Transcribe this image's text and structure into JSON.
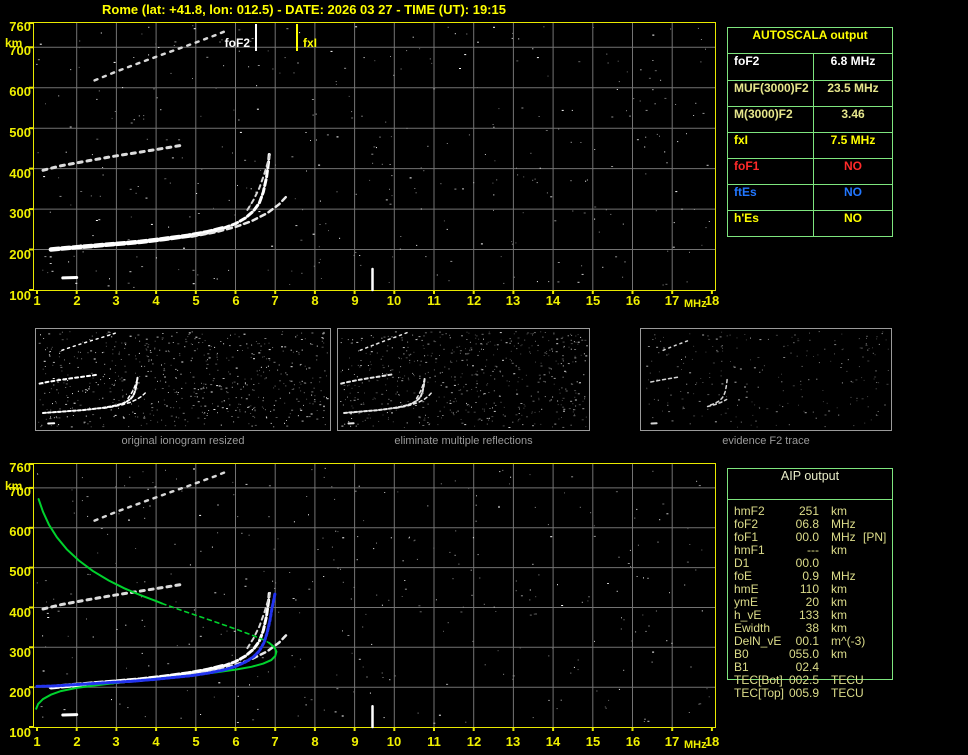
{
  "title": "Rome (lat: +41.8, lon: 012.5) - DATE: 2026 03 27 - TIME (UT): 19:15",
  "axes": {
    "y_unit": "km",
    "x_unit": "MHz",
    "y_ticks": [
      760,
      700,
      600,
      500,
      400,
      300,
      200,
      100
    ],
    "x_ticks": [
      1,
      2,
      3,
      4,
      5,
      6,
      7,
      8,
      9,
      10,
      11,
      12,
      13,
      14,
      15,
      16,
      17,
      18
    ]
  },
  "top_plot": {
    "foF2_label": "foF2",
    "fxI_label": "fxI"
  },
  "panels": [
    {
      "caption": "original ionogram resized"
    },
    {
      "caption": "eliminate multiple reflections"
    },
    {
      "caption": "evidence F2 trace"
    }
  ],
  "autoscala": {
    "title": "AUTOSCALA output",
    "rows": [
      {
        "param": "foF2",
        "value": "6.8 MHz",
        "color": "#ffffff"
      },
      {
        "param": "MUF(3000)F2",
        "value": "23.5 MHz",
        "color": "#e6e68c"
      },
      {
        "param": "M(3000)F2",
        "value": "3.46",
        "color": "#e6e68c"
      },
      {
        "param": "fxI",
        "value": "7.5 MHz",
        "color": "#ffff00"
      },
      {
        "param": "foF1",
        "value": "NO",
        "color": "#ff2a2a"
      },
      {
        "param": "ftEs",
        "value": "NO",
        "color": "#2277ff"
      },
      {
        "param": "h'Es",
        "value": "NO",
        "color": "#ffff00"
      }
    ]
  },
  "aip": {
    "title": "AIP output",
    "rows": [
      {
        "name": "hmF2",
        "value": "251",
        "unit": "km",
        "extra": ""
      },
      {
        "name": "foF2",
        "value": "06.8",
        "unit": "MHz",
        "extra": ""
      },
      {
        "name": "foF1",
        "value": "00.0",
        "unit": "MHz",
        "extra": "[PN]"
      },
      {
        "name": "hmF1",
        "value": "---",
        "unit": "km",
        "extra": ""
      },
      {
        "name": "D1",
        "value": "00.0",
        "unit": "",
        "extra": ""
      },
      {
        "name": "foE",
        "value": "0.9",
        "unit": "MHz",
        "extra": ""
      },
      {
        "name": "hmE",
        "value": "110",
        "unit": "km",
        "extra": ""
      },
      {
        "name": "ymE",
        "value": "20",
        "unit": "km",
        "extra": ""
      },
      {
        "name": "h_vE",
        "value": "133",
        "unit": "km",
        "extra": ""
      },
      {
        "name": "Ewidth",
        "value": "38",
        "unit": "km",
        "extra": ""
      },
      {
        "name": "DelN_vE",
        "value": "00.1",
        "unit": "m^(-3)",
        "extra": ""
      },
      {
        "name": "B0",
        "value": "055.0",
        "unit": "km",
        "extra": ""
      },
      {
        "name": "B1",
        "value": "02.4",
        "unit": "",
        "extra": ""
      },
      {
        "name": "TEC[Bot]",
        "value": "002.5",
        "unit": "TECU",
        "extra": ""
      },
      {
        "name": "TEC[Top]",
        "value": "005.9",
        "unit": "TECU",
        "extra": ""
      }
    ]
  },
  "colors": {
    "accent_yellow": "#ffff00",
    "axis_yellow": "#efef00",
    "table_border_green": "#7ee57e",
    "profile_green": "#00d22d",
    "trace_blue": "#2233ee",
    "grid_gray": "#737373",
    "caption_gray": "#9a9a9a",
    "aip_text": "#dcdc8a"
  },
  "chart_data": [
    {
      "type": "scatter",
      "title": "Autoscaled ionogram",
      "xlabel": "MHz",
      "ylabel": "km",
      "xlim": [
        1,
        18
      ],
      "ylim": [
        100,
        760
      ],
      "grid": true,
      "markers": {
        "foF2_MHz": 6.8,
        "fxI_MHz": 7.5
      },
      "series": [
        {
          "name": "F2 trace o-mode",
          "points": [
            [
              1.35,
              200
            ],
            [
              1.8,
              204
            ],
            [
              2.4,
              209
            ],
            [
              3.0,
              214
            ],
            [
              3.6,
              219
            ],
            [
              4.2,
              226
            ],
            [
              4.8,
              234
            ],
            [
              5.3,
              243
            ],
            [
              5.7,
              253
            ],
            [
              6.0,
              264
            ],
            [
              6.25,
              278
            ],
            [
              6.45,
              295
            ],
            [
              6.6,
              315
            ],
            [
              6.7,
              342
            ],
            [
              6.78,
              378
            ],
            [
              6.83,
              415
            ],
            [
              6.85,
              435
            ]
          ]
        },
        {
          "name": "F2 trace x-mode",
          "points": [
            [
              4.9,
              232
            ],
            [
              5.5,
              243
            ],
            [
              6.0,
              256
            ],
            [
              6.4,
              270
            ],
            [
              6.8,
              290
            ],
            [
              7.1,
              312
            ],
            [
              7.3,
              333
            ]
          ]
        },
        {
          "name": "second-hop trace",
          "points": [
            [
              1.15,
              396
            ],
            [
              1.6,
              407
            ],
            [
              2.2,
              418
            ],
            [
              2.9,
              430
            ],
            [
              3.6,
              441
            ],
            [
              4.3,
              452
            ],
            [
              4.6,
              457
            ]
          ]
        },
        {
          "name": "second-hop upper trace",
          "points": [
            [
              2.45,
              618
            ],
            [
              3.0,
              640
            ],
            [
              3.6,
              662
            ],
            [
              4.3,
              687
            ],
            [
              4.9,
              708
            ],
            [
              5.5,
              730
            ],
            [
              5.75,
              740
            ]
          ]
        },
        {
          "name": "second-hop cusp",
          "points": [
            [
              6.3,
              298
            ],
            [
              6.45,
              322
            ],
            [
              6.6,
              352
            ],
            [
              6.72,
              385
            ],
            [
              6.82,
              418
            ],
            [
              6.88,
              440
            ]
          ]
        },
        {
          "name": "interference line",
          "points": [
            [
              9.45,
              100
            ],
            [
              9.45,
              152
            ]
          ]
        },
        {
          "name": "E-region blob",
          "points": [
            [
              1.65,
              130
            ],
            [
              2.0,
              131
            ]
          ]
        }
      ]
    },
    {
      "type": "line",
      "title": "Ionogram with AIP electron density profile and restored trace",
      "xlabel": "MHz",
      "ylabel": "km",
      "xlim": [
        1,
        18
      ],
      "ylim": [
        100,
        760
      ],
      "grid": true,
      "series": [
        {
          "name": "profile upper (solid)",
          "points": [
            [
              1.04,
              672
            ],
            [
              1.15,
              640
            ],
            [
              1.3,
              608
            ],
            [
              1.5,
              576
            ],
            [
              1.75,
              546
            ],
            [
              2.05,
              518
            ],
            [
              2.4,
              492
            ],
            [
              2.8,
              468
            ],
            [
              3.2,
              448
            ],
            [
              3.6,
              431
            ],
            [
              4.0,
              416
            ],
            [
              4.15,
              410
            ]
          ]
        },
        {
          "name": "profile middle (dashed)",
          "points": [
            [
              4.15,
              410
            ],
            [
              4.6,
              394
            ],
            [
              5.1,
              377
            ],
            [
              5.6,
              360
            ],
            [
              6.0,
              346
            ],
            [
              6.4,
              331
            ],
            [
              6.7,
              319
            ],
            [
              6.85,
              311
            ]
          ]
        },
        {
          "name": "profile nose and valley",
          "points": [
            [
              6.85,
              311
            ],
            [
              6.98,
              300
            ],
            [
              7.03,
              289
            ],
            [
              7.0,
              278
            ],
            [
              6.9,
              268
            ],
            [
              6.7,
              259
            ],
            [
              6.4,
              251
            ],
            [
              6.0,
              244
            ],
            [
              5.5,
              237
            ],
            [
              4.9,
              230
            ],
            [
              4.3,
              224
            ],
            [
              3.7,
              218
            ],
            [
              3.1,
              212
            ],
            [
              2.5,
              205
            ],
            [
              2.0,
              198
            ],
            [
              1.6,
              190
            ],
            [
              1.35,
              181
            ],
            [
              1.15,
              170
            ],
            [
              1.03,
              158
            ],
            [
              0.98,
              146
            ]
          ]
        },
        {
          "name": "restored F2 trace (blue)",
          "points": [
            [
              1.0,
              202
            ],
            [
              1.4,
              203
            ],
            [
              1.9,
              206
            ],
            [
              2.4,
              209
            ],
            [
              2.9,
              212
            ],
            [
              3.4,
              215
            ],
            [
              3.9,
              219
            ],
            [
              4.4,
              224
            ],
            [
              4.9,
              229
            ],
            [
              5.3,
              235
            ],
            [
              5.7,
              243
            ],
            [
              6.0,
              252
            ],
            [
              6.25,
              263
            ],
            [
              6.45,
              276
            ],
            [
              6.6,
              291
            ],
            [
              6.72,
              312
            ],
            [
              6.8,
              338
            ],
            [
              6.87,
              368
            ],
            [
              6.92,
              398
            ],
            [
              6.97,
              422
            ],
            [
              7.0,
              438
            ]
          ]
        }
      ]
    }
  ]
}
